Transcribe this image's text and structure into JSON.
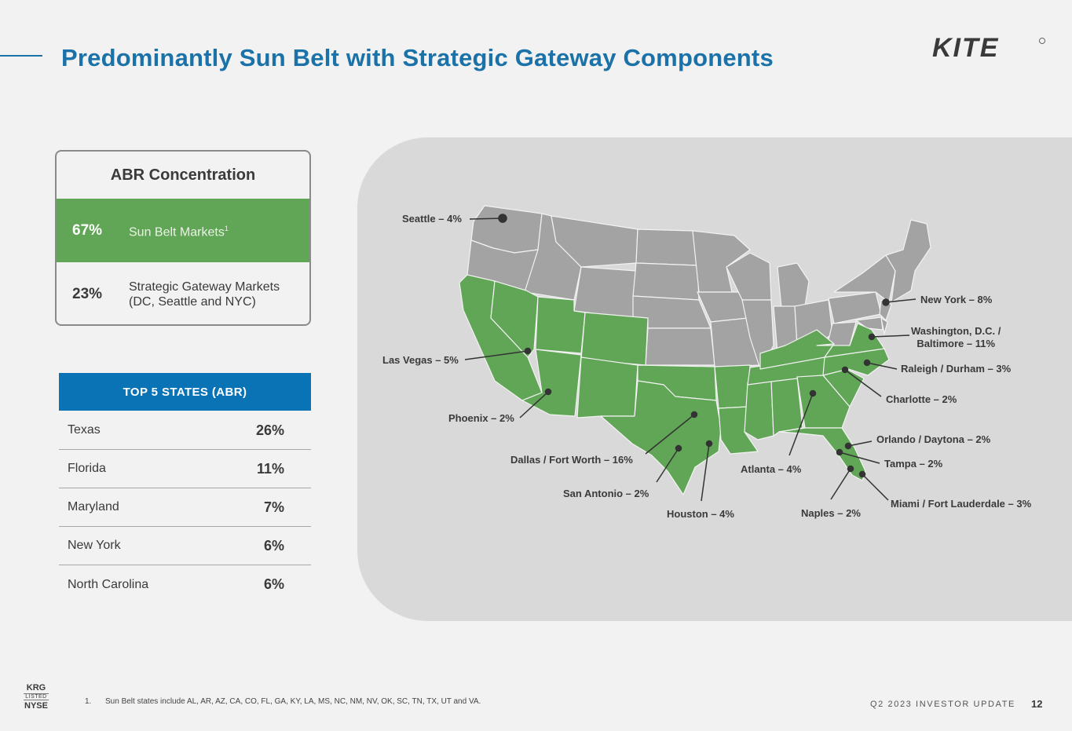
{
  "title": "Predominantly Sun Belt with Strategic Gateway Components",
  "logo_text": "KITE",
  "abr": {
    "title": "ABR Concentration",
    "rows": [
      {
        "pct": "67%",
        "label": "Sun Belt Markets",
        "sup": "1"
      },
      {
        "pct": "23%",
        "label": "Strategic Gateway Markets\n(DC, Seattle and NYC)"
      }
    ]
  },
  "top5": {
    "header": "TOP 5 STATES (ABR)",
    "rows": [
      {
        "state": "Texas",
        "value": "26%"
      },
      {
        "state": "Florida",
        "value": "11%"
      },
      {
        "state": "Maryland",
        "value": "7%"
      },
      {
        "state": "New York",
        "value": "6%"
      },
      {
        "state": "North Carolina",
        "value": "6%"
      }
    ]
  },
  "map": {
    "markets": [
      {
        "id": "seattle",
        "label": "Seattle – 4%"
      },
      {
        "id": "lasvegas",
        "label": "Las Vegas – 5%"
      },
      {
        "id": "phoenix",
        "label": "Phoenix – 2%"
      },
      {
        "id": "dallas",
        "label": "Dallas / Fort Worth – 16%"
      },
      {
        "id": "sanantonio",
        "label": "San Antonio – 2%"
      },
      {
        "id": "houston",
        "label": "Houston – 4%"
      },
      {
        "id": "atlanta",
        "label": "Atlanta – 4%"
      },
      {
        "id": "naples",
        "label": "Naples – 2%"
      },
      {
        "id": "miami",
        "label": "Miami / Fort Lauderdale – 3%"
      },
      {
        "id": "tampa",
        "label": "Tampa – 2%"
      },
      {
        "id": "orlando",
        "label": "Orlando / Daytona – 2%"
      },
      {
        "id": "charlotte",
        "label": "Charlotte – 2%"
      },
      {
        "id": "raleigh",
        "label": "Raleigh / Durham – 3%"
      },
      {
        "id": "washington",
        "label": "Washington, D.C. /\nBaltimore – 11%"
      },
      {
        "id": "newyork",
        "label": "New York – 8%"
      }
    ],
    "sunbelt_color": "#61a556",
    "other_color": "#a3a3a3"
  },
  "footer": {
    "ticker": "KRG",
    "listed": "LISTED",
    "exchange": "NYSE",
    "footnote_num": "1.",
    "footnote": "Sun Belt states include AL, AR, AZ, CA, CO, FL, GA, KY, LA, MS, NC, NM, NV, OK, SC, TN, TX, UT and VA.",
    "investor_update": "Q2 2023 INVESTOR UPDATE",
    "page": "12"
  }
}
